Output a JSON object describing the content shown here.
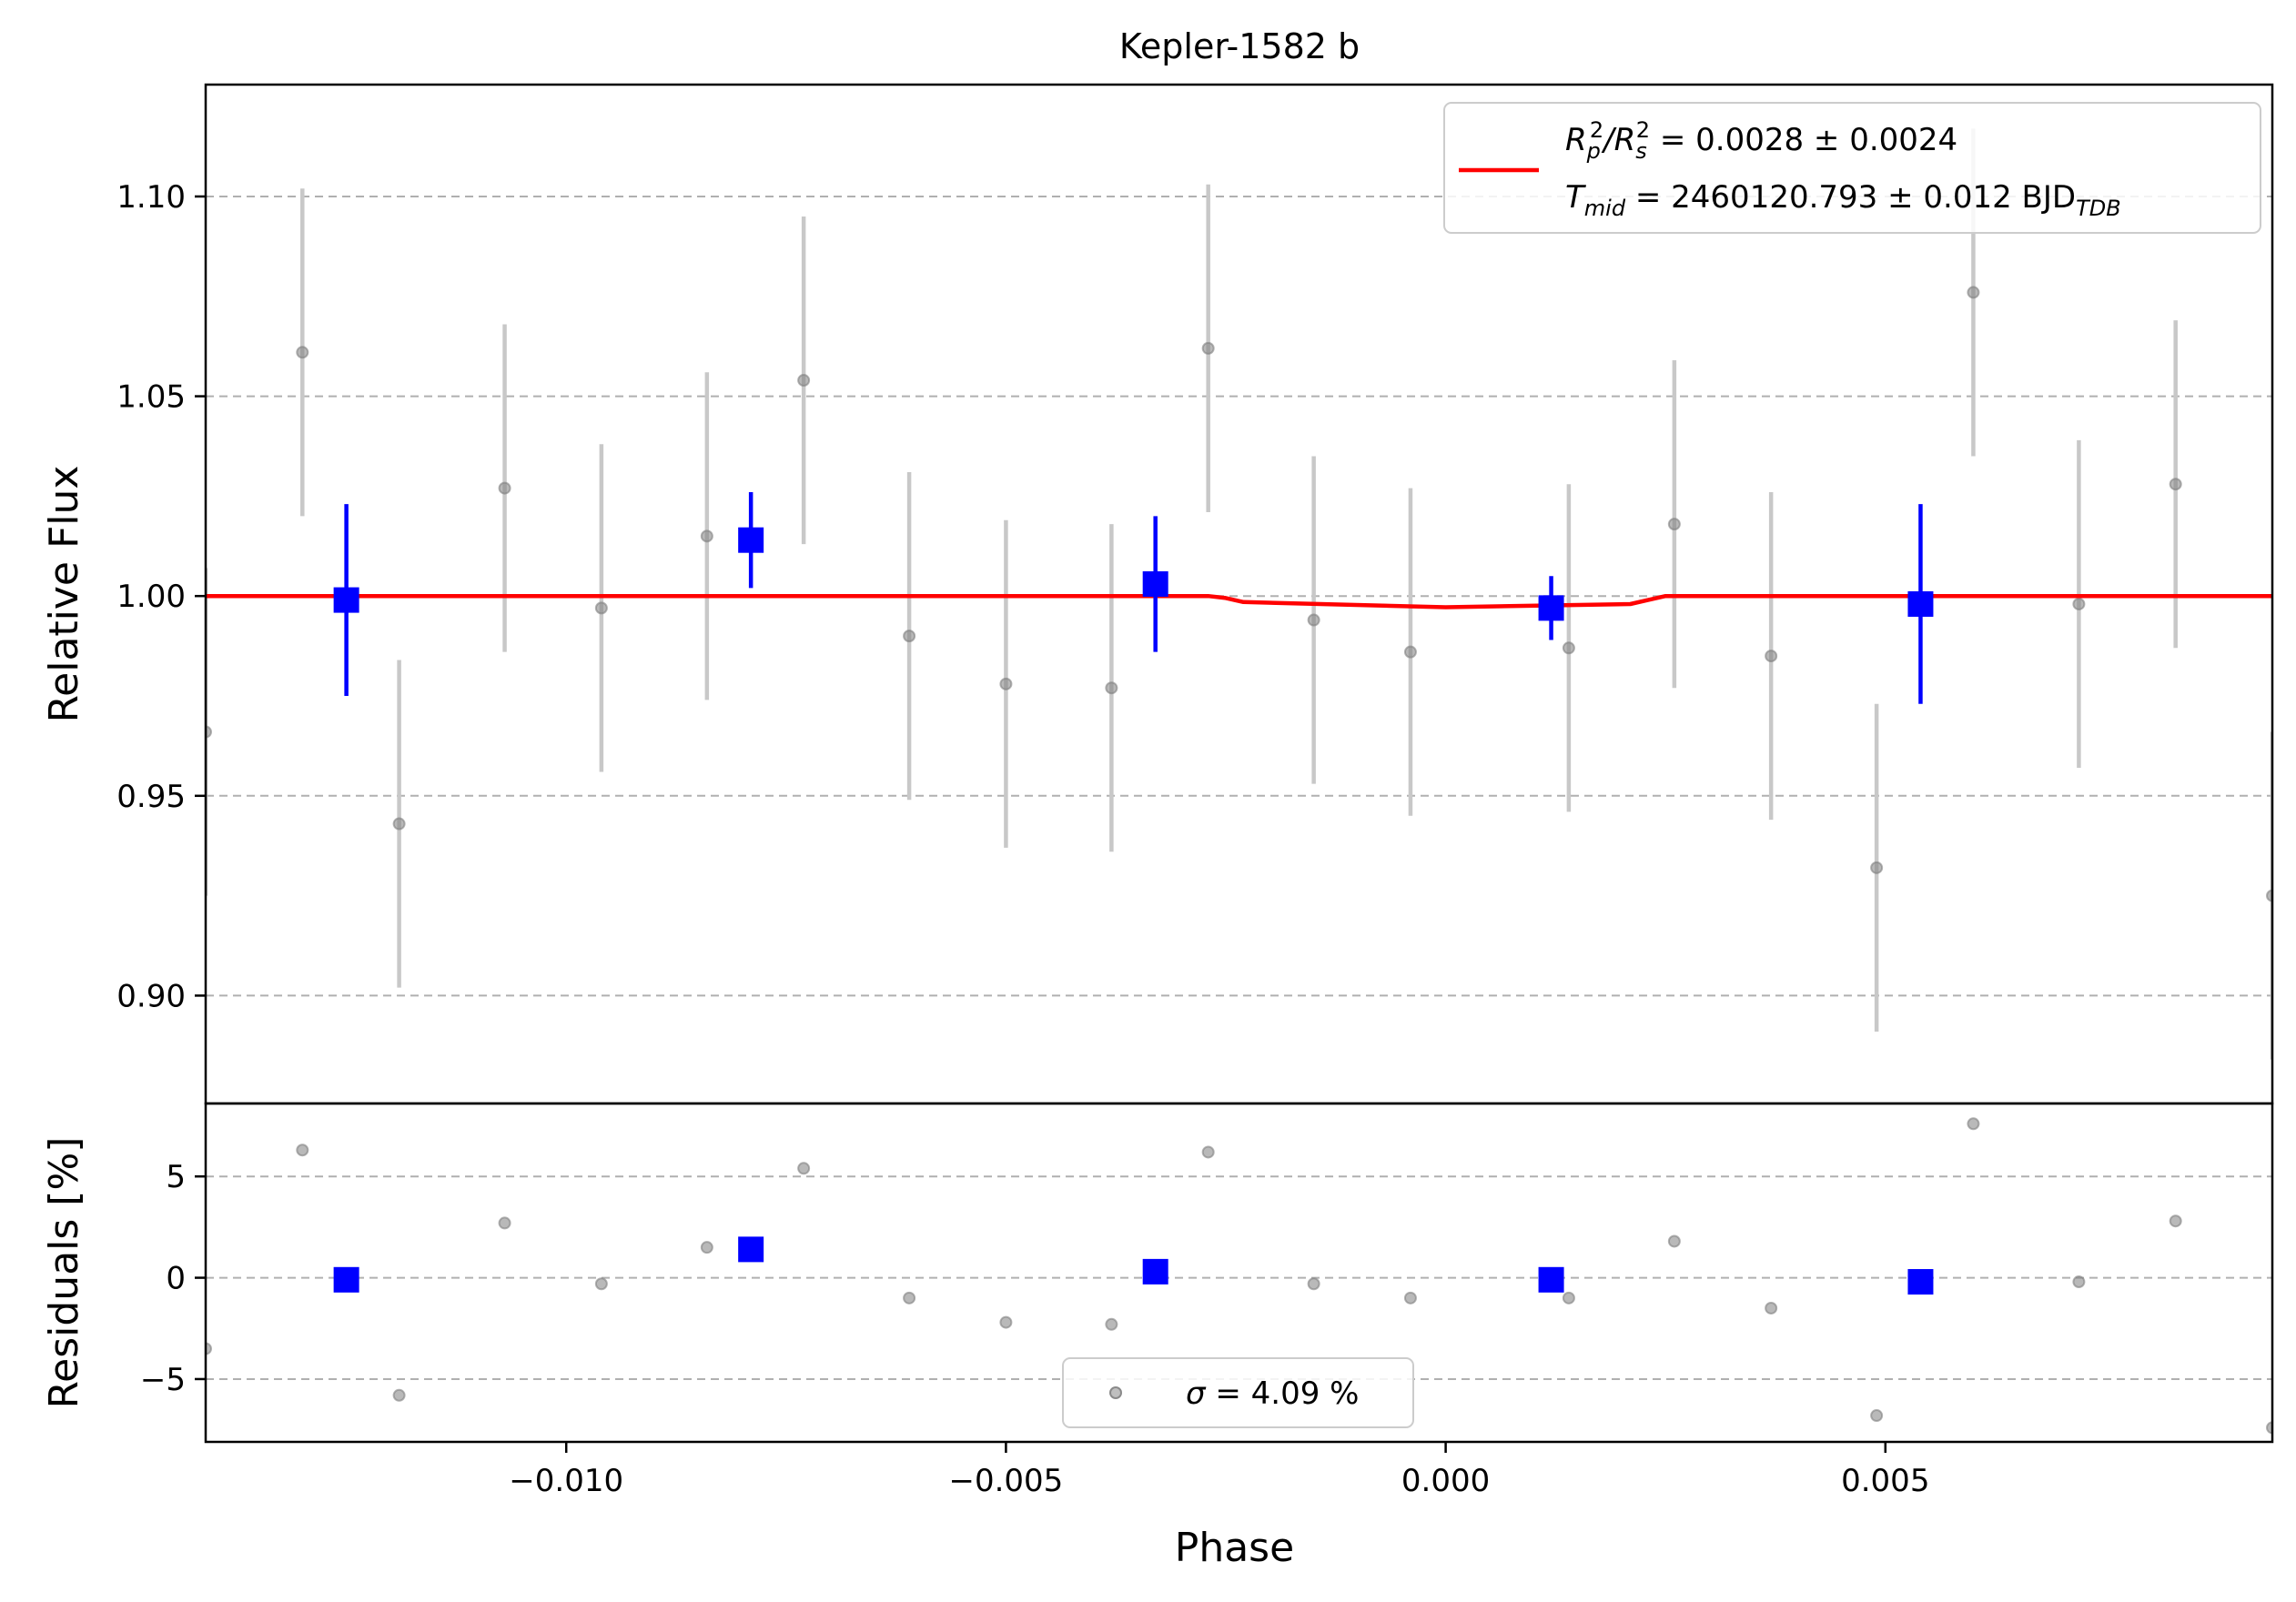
{
  "chart_data": {
    "type": "scatter",
    "title": "Kepler-1582 b",
    "xlabel": "Phase",
    "xlim": [
      -0.0141,
      0.0094
    ],
    "x_ticks": [
      -0.01,
      -0.005,
      0.0,
      0.005
    ],
    "x_tick_labels": [
      "−0.010",
      "−0.005",
      "0.000",
      "0.005"
    ],
    "colors": {
      "raw": "#808080",
      "raw_err": "#c8c8c8",
      "binned": "#0000ff",
      "model": "#ff0000"
    },
    "top_panel": {
      "ylabel": "Relative Flux",
      "ylim": [
        0.873,
        1.128
      ],
      "y_ticks": [
        0.9,
        0.95,
        1.0,
        1.05,
        1.1
      ],
      "y_tick_labels": [
        "0.90",
        "0.95",
        "1.00",
        "1.05",
        "1.10"
      ],
      "grid": true,
      "legend_lines": [
        "R",
        "T"
      ],
      "legend": {
        "position": "top-right",
        "rp_rs_base": "R",
        "rp_rs_sub1": "p",
        "rp_rs_sup1": "2",
        "rp_rs_mid": "/R",
        "rp_rs_sub2": "s",
        "rp_rs_sup2": "2",
        "rp_rs_value": " = 0.0028 ± 0.0024",
        "tmid_base": "T",
        "tmid_sub": "mid",
        "tmid_value": " = 2460120.793 ± 0.012 BJD",
        "tmid_unit_sub": "TDB"
      },
      "raw": {
        "x": [
          -0.0141,
          -0.013,
          -0.0119,
          -0.0107,
          -0.0096,
          -0.0084,
          -0.0073,
          -0.0061,
          -0.005,
          -0.0038,
          -0.0027,
          -0.0015,
          -0.0004,
          0.0014,
          0.0026,
          0.0037,
          0.0049,
          0.006,
          0.0072,
          0.0083,
          0.0094
        ],
        "y": [
          0.966,
          1.061,
          0.943,
          1.027,
          0.997,
          1.015,
          1.054,
          0.99,
          0.978,
          0.977,
          1.062,
          0.994,
          0.986,
          0.987,
          1.018,
          0.985,
          0.932,
          1.076,
          0.998,
          1.028,
          0.925
        ],
        "yerr": [
          0.041,
          0.041,
          0.041,
          0.041,
          0.041,
          0.041,
          0.041,
          0.041,
          0.041,
          0.041,
          0.041,
          0.041,
          0.041,
          0.041,
          0.041,
          0.041,
          0.041,
          0.041,
          0.041,
          0.041,
          0.041
        ]
      },
      "binned": {
        "x": [
          -0.0125,
          -0.0079,
          -0.0033,
          0.0012,
          0.0054
        ],
        "y": [
          0.999,
          1.014,
          1.003,
          0.997,
          0.998
        ],
        "yerr": [
          0.024,
          0.012,
          0.017,
          0.008,
          0.025
        ]
      },
      "model": {
        "x": [
          -0.0141,
          -0.0027,
          -0.0025,
          -0.0023,
          0.0,
          0.0021,
          0.0023,
          0.0025,
          0.0094
        ],
        "y": [
          1.0,
          1.0,
          0.9995,
          0.9985,
          0.9972,
          0.998,
          0.999,
          1.0,
          1.0
        ]
      }
    },
    "bottom_panel": {
      "ylabel": "Residuals [%]",
      "ylim": [
        -8.1,
        8.6
      ],
      "y_ticks": [
        -5,
        0,
        5
      ],
      "y_tick_labels": [
        "−5",
        "0",
        "5"
      ],
      "grid": true,
      "legend": {
        "position": "bottom-center",
        "sigma_symbol": "σ",
        "sigma_value": " = 4.09 %"
      },
      "raw": {
        "x": [
          -0.0141,
          -0.013,
          -0.0119,
          -0.0107,
          -0.0096,
          -0.0084,
          -0.0073,
          -0.0061,
          -0.005,
          -0.0038,
          -0.0027,
          -0.0015,
          -0.0004,
          0.0014,
          0.0026,
          0.0037,
          0.0049,
          0.006,
          0.0072,
          0.0083,
          0.0094
        ],
        "y": [
          -3.5,
          6.3,
          -5.8,
          2.7,
          -0.3,
          1.5,
          5.4,
          -1.0,
          -2.2,
          -2.3,
          6.2,
          -0.3,
          -1.0,
          -1.0,
          1.8,
          -1.5,
          -6.8,
          7.6,
          -0.2,
          2.8,
          -7.4
        ]
      },
      "binned": {
        "x": [
          -0.0125,
          -0.0079,
          -0.0033,
          0.0012,
          0.0054
        ],
        "y": [
          -0.1,
          1.4,
          0.3,
          -0.1,
          -0.2
        ]
      }
    }
  }
}
